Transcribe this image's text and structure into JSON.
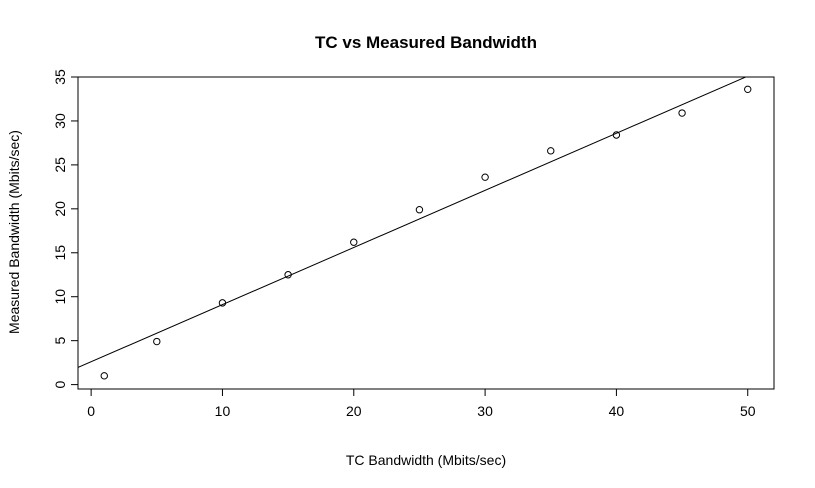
{
  "chart_data": {
    "type": "scatter",
    "title": "TC vs Measured Bandwidth",
    "xlabel": "TC Bandwidth (Mbits/sec)",
    "ylabel": "Measured Bandwidth (Mbits/sec)",
    "xlim": [
      -1,
      52
    ],
    "ylim": [
      -0.5,
      35
    ],
    "xticks": [
      0,
      10,
      20,
      30,
      40,
      50
    ],
    "yticks": [
      0,
      5,
      10,
      15,
      20,
      25,
      30,
      35
    ],
    "grid": false,
    "legend": "none",
    "points": {
      "x": [
        1,
        5,
        10,
        15,
        20,
        25,
        30,
        35,
        40,
        45,
        50
      ],
      "y": [
        1.0,
        4.9,
        9.3,
        12.5,
        16.2,
        19.9,
        23.6,
        26.6,
        28.4,
        30.9,
        33.6
      ]
    },
    "fit_line": {
      "intercept": 2.6,
      "slope": 0.65
    }
  }
}
